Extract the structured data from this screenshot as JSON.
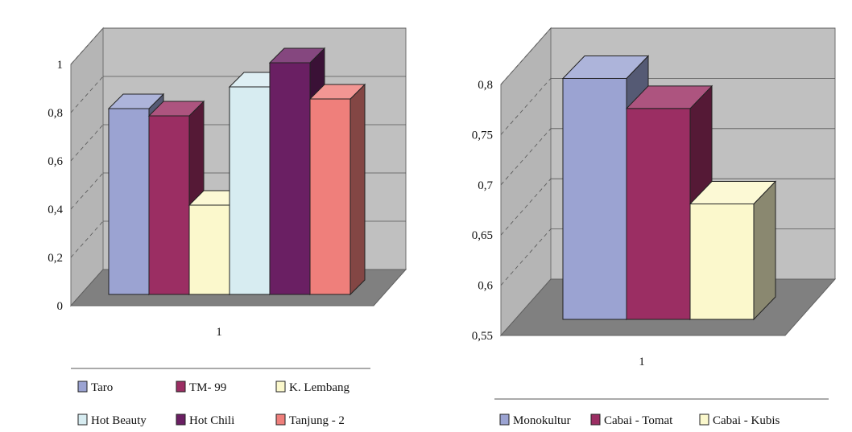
{
  "chart_data": [
    {
      "type": "bar",
      "style": "3d",
      "categories": [
        "1"
      ],
      "series": [
        {
          "name": "Taro",
          "values": [
            0.77
          ],
          "color": "#9ba3d2"
        },
        {
          "name": "TM- 99",
          "values": [
            0.74
          ],
          "color": "#9b2e63"
        },
        {
          "name": "K. Lembang",
          "values": [
            0.37
          ],
          "color": "#fbf8cc"
        },
        {
          "name": "Hot Beauty",
          "values": [
            0.86
          ],
          "color": "#d7ecf1"
        },
        {
          "name": "Hot Chili",
          "values": [
            0.96
          ],
          "color": "#6a1f63"
        },
        {
          "name": "Tanjung - 2",
          "values": [
            0.81
          ],
          "color": "#ef7f7b"
        }
      ],
      "ylim": [
        0,
        1
      ],
      "yticks": [
        "0",
        "0,2",
        "0,4",
        "0,6",
        "0,8",
        "1"
      ],
      "grid": true,
      "legend_position": "bottom"
    },
    {
      "type": "bar",
      "style": "3d",
      "categories": [
        "1"
      ],
      "series": [
        {
          "name": "Monokultur",
          "values": [
            0.79
          ],
          "color": "#9ba3d2"
        },
        {
          "name": "Cabai - Tomat",
          "values": [
            0.76
          ],
          "color": "#9b2e63"
        },
        {
          "name": "Cabai - Kubis",
          "values": [
            0.665
          ],
          "color": "#fbf8cc"
        }
      ],
      "ylim": [
        0.55,
        0.8
      ],
      "yticks": [
        "0,55",
        "0,6",
        "0,65",
        "0,7",
        "0,75",
        "0,8"
      ],
      "grid": true,
      "legend_position": "bottom"
    }
  ]
}
